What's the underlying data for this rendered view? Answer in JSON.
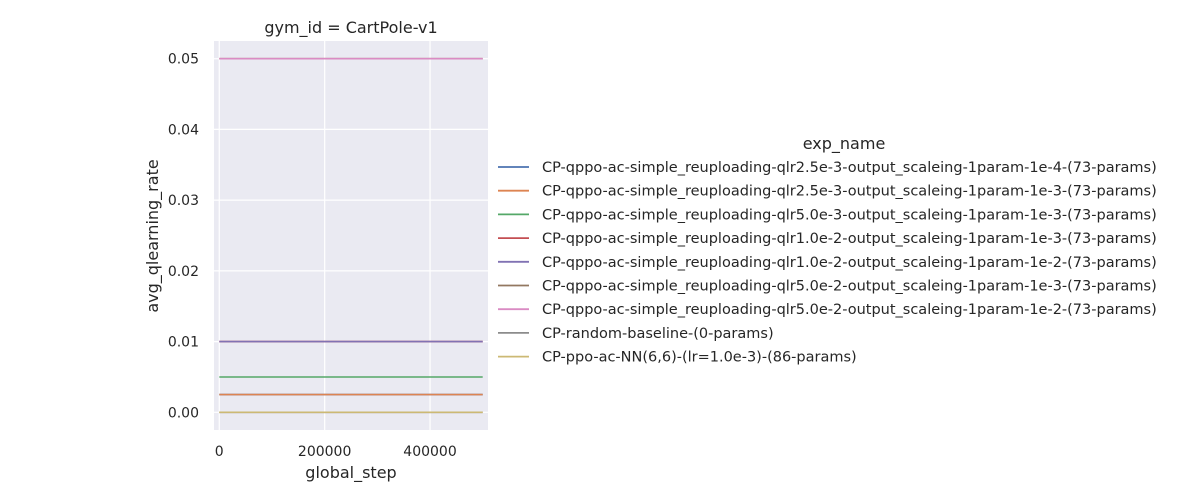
{
  "chart_data": {
    "type": "line",
    "facet_title": "gym_id = CartPole-v1",
    "xlabel": "global_step",
    "ylabel": "avg_qlearning_rate",
    "xlim": [
      -10000,
      510000
    ],
    "ylim": [
      -0.0025,
      0.0525
    ],
    "x_ticks": [
      0,
      200000,
      400000
    ],
    "y_ticks": [
      0.0,
      0.01,
      0.02,
      0.03,
      0.04,
      0.05
    ],
    "y_tick_labels": [
      "0.00",
      "0.01",
      "0.02",
      "0.03",
      "0.04",
      "0.05"
    ],
    "grid": true,
    "legend_title": "exp_name",
    "legend_position": "right",
    "series": [
      {
        "name": "CP-qppo-ac-simple_reuploading-qlr2.5e-3-output_scaleing-1param-1e-4-(73-params)",
        "color": "#4c72b0",
        "x": [
          0,
          500000
        ],
        "y": [
          0.0025,
          0.0025
        ]
      },
      {
        "name": "CP-qppo-ac-simple_reuploading-qlr2.5e-3-output_scaleing-1param-1e-3-(73-params)",
        "color": "#dd8452",
        "x": [
          0,
          500000
        ],
        "y": [
          0.0025,
          0.0025
        ]
      },
      {
        "name": "CP-qppo-ac-simple_reuploading-qlr5.0e-3-output_scaleing-1param-1e-3-(73-params)",
        "color": "#55a868",
        "x": [
          0,
          500000
        ],
        "y": [
          0.005,
          0.005
        ]
      },
      {
        "name": "CP-qppo-ac-simple_reuploading-qlr1.0e-2-output_scaleing-1param-1e-3-(73-params)",
        "color": "#c44e52",
        "x": [
          0,
          500000
        ],
        "y": [
          0.01,
          0.01
        ]
      },
      {
        "name": "CP-qppo-ac-simple_reuploading-qlr1.0e-2-output_scaleing-1param-1e-2-(73-params)",
        "color": "#8172b3",
        "x": [
          0,
          500000
        ],
        "y": [
          0.01,
          0.01
        ]
      },
      {
        "name": "CP-qppo-ac-simple_reuploading-qlr5.0e-2-output_scaleing-1param-1e-3-(73-params)",
        "color": "#937860",
        "x": [
          0,
          500000
        ],
        "y": [
          0.05,
          0.05
        ]
      },
      {
        "name": "CP-qppo-ac-simple_reuploading-qlr5.0e-2-output_scaleing-1param-1e-2-(73-params)",
        "color": "#da8bc3",
        "x": [
          0,
          500000
        ],
        "y": [
          0.05,
          0.05
        ]
      },
      {
        "name": "CP-random-baseline-(0-params)",
        "color": "#8c8c8c",
        "x": [
          0,
          500000
        ],
        "y": [
          0.0,
          0.0
        ]
      },
      {
        "name": "CP-ppo-ac-NN(6,6)-(lr=1.0e-3)-(86-params)",
        "color": "#ccb974",
        "x": [
          0,
          500000
        ],
        "y": [
          0.0,
          0.0
        ]
      }
    ]
  }
}
